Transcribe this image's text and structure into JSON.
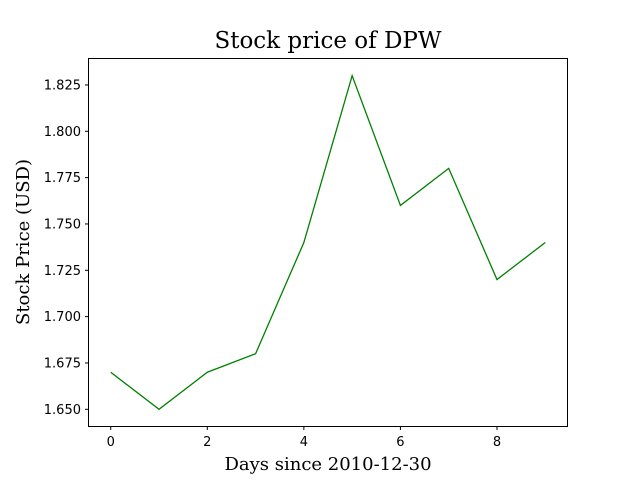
{
  "chart_data": {
    "type": "line",
    "title": "Stock price of DPW",
    "xlabel": "Days since 2010-12-30",
    "ylabel": "Stock Price (USD)",
    "x": [
      0,
      1,
      2,
      3,
      4,
      5,
      6,
      7,
      8,
      9
    ],
    "series": [
      {
        "values": [
          1.67,
          1.65,
          1.67,
          1.68,
          1.74,
          1.83,
          1.76,
          1.78,
          1.72,
          1.74
        ],
        "color": "#008000"
      }
    ],
    "xlim": [
      -0.45,
      9.45
    ],
    "ylim": [
      1.641,
      1.839
    ],
    "xticks": [
      0,
      2,
      4,
      6,
      8
    ],
    "xtick_labels": [
      "0",
      "2",
      "4",
      "6",
      "8"
    ],
    "yticks": [
      1.65,
      1.675,
      1.7,
      1.725,
      1.75,
      1.775,
      1.8,
      1.825
    ],
    "ytick_labels": [
      "1.650",
      "1.675",
      "1.700",
      "1.725",
      "1.750",
      "1.775",
      "1.800",
      "1.825"
    ],
    "grid": false,
    "legend": false
  }
}
